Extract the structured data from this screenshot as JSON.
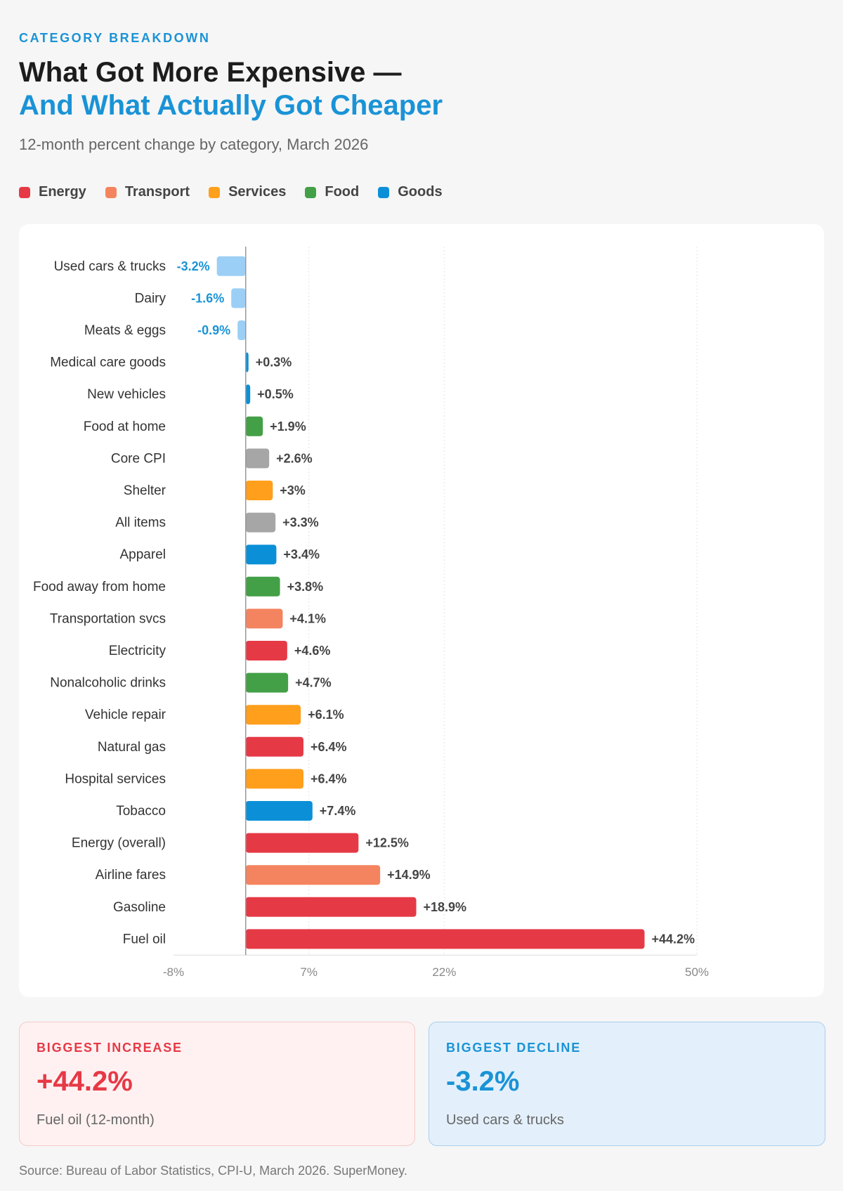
{
  "header": {
    "eyebrow": "CATEGORY BREAKDOWN",
    "title_line1": "What Got More Expensive —",
    "title_line2": "And What Actually Got Cheaper",
    "subtitle": "12-month percent change by category, March 2026"
  },
  "legend": [
    {
      "label": "Energy",
      "color": "#e63946"
    },
    {
      "label": "Transport",
      "color": "#f4845f"
    },
    {
      "label": "Services",
      "color": "#ff9f1c"
    },
    {
      "label": "Food",
      "color": "#43a047"
    },
    {
      "label": "Goods",
      "color": "#0b90d8"
    }
  ],
  "chart_data": {
    "type": "bar",
    "orientation": "horizontal",
    "title": "",
    "xlabel": "",
    "ylabel": "",
    "xlim": [
      -8,
      50
    ],
    "x_ticks": [
      -8,
      7,
      22,
      50
    ],
    "x_tick_labels": [
      "-8%",
      "7%",
      "22%",
      "50%"
    ],
    "grid": true,
    "legend_placement": "top-left",
    "categories": [
      "Used cars & trucks",
      "Dairy",
      "Meats & eggs",
      "Medical care goods",
      "New vehicles",
      "Food at home",
      "Core CPI",
      "Shelter",
      "All items",
      "Apparel",
      "Food away from home",
      "Transportation svcs",
      "Electricity",
      "Nonalcoholic drinks",
      "Vehicle repair",
      "Natural gas",
      "Hospital services",
      "Tobacco",
      "Energy (overall)",
      "Airline fares",
      "Gasoline",
      "Fuel oil"
    ],
    "values": [
      -3.2,
      -1.6,
      -0.9,
      0.3,
      0.5,
      1.9,
      2.6,
      3,
      3.3,
      3.4,
      3.8,
      4.1,
      4.6,
      4.7,
      6.1,
      6.4,
      6.4,
      7.4,
      12.5,
      14.9,
      18.9,
      44.2
    ],
    "value_labels": [
      "-3.2%",
      "-1.6%",
      "-0.9%",
      "+0.3%",
      "+0.5%",
      "+1.9%",
      "+2.6%",
      "+3%",
      "+3.3%",
      "+3.4%",
      "+3.8%",
      "+4.1%",
      "+4.6%",
      "+4.7%",
      "+6.1%",
      "+6.4%",
      "+6.4%",
      "+7.4%",
      "+12.5%",
      "+14.9%",
      "+18.9%",
      "+44.2%"
    ],
    "groups": [
      "Goods",
      "Food",
      "Food",
      "Goods",
      "Goods",
      "Food",
      "Aggregate",
      "Services",
      "Aggregate",
      "Goods",
      "Food",
      "Transport",
      "Energy",
      "Food",
      "Services",
      "Energy",
      "Services",
      "Goods",
      "Energy",
      "Transport",
      "Energy",
      "Energy"
    ],
    "bar_colors": [
      "#9ccff5",
      "#9ccff5",
      "#9ccff5",
      "#0b90d8",
      "#0b90d8",
      "#43a047",
      "#a6a6a6",
      "#ff9f1c",
      "#a6a6a6",
      "#0b90d8",
      "#43a047",
      "#f4845f",
      "#e63946",
      "#43a047",
      "#ff9f1c",
      "#e63946",
      "#ff9f1c",
      "#0b90d8",
      "#e63946",
      "#f4845f",
      "#e63946",
      "#e63946"
    ],
    "negative_label_color": "#1a93d6",
    "positive_label_color": "#444444"
  },
  "stats": {
    "increase": {
      "label": "BIGGEST INCREASE",
      "value": "+44.2%",
      "desc": "Fuel oil (12-month)"
    },
    "decline": {
      "label": "BIGGEST DECLINE",
      "value": "-3.2%",
      "desc": "Used cars & trucks"
    }
  },
  "footer": {
    "source": "Source: Bureau of Labor Statistics, CPI-U, March 2026. SuperMoney."
  }
}
